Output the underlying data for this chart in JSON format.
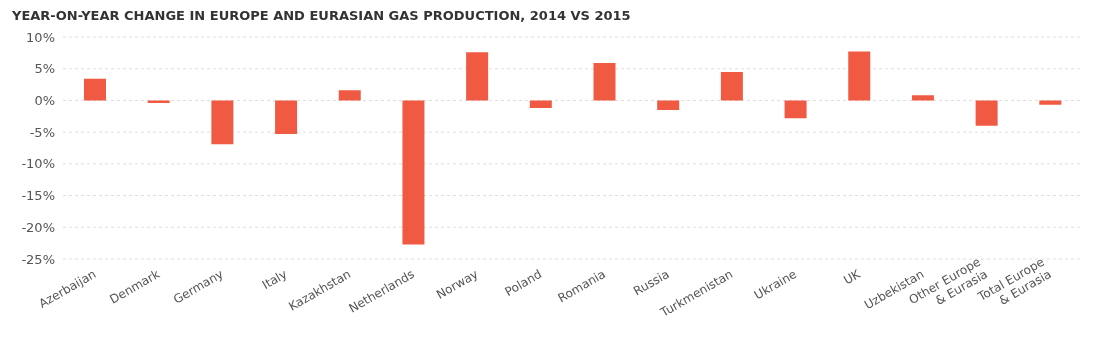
{
  "chart_data": {
    "type": "bar",
    "title": "YEAR-ON-YEAR CHANGE IN EUROPE AND EURASIAN GAS PRODUCTION, 2014 VS 2015",
    "categories": [
      "Azerbaijan",
      "Denmark",
      "Germany",
      "Italy",
      "Kazakhstan",
      "Netherlands",
      "Norway",
      "Poland",
      "Romania",
      "Russia",
      "Turkmenistan",
      "Ukraine",
      "UK",
      "Uzbekistan",
      "Other Europe & Eurasia",
      "Total Europe & Eurasia"
    ],
    "values": [
      3.4,
      -0.4,
      -6.9,
      -5.3,
      1.6,
      -22.7,
      7.6,
      -1.2,
      5.9,
      -1.5,
      4.5,
      -2.8,
      7.7,
      0.8,
      -4.0,
      -0.7
    ],
    "color": "#f15a42",
    "ylim": [
      -25,
      10
    ],
    "yticks": [
      {
        "value": -25,
        "label": "-25%"
      },
      {
        "value": -20,
        "label": "-20%"
      },
      {
        "value": -15,
        "label": "-15%"
      },
      {
        "value": -10,
        "label": "-10%"
      },
      {
        "value": -5,
        "label": "-5%"
      },
      {
        "value": 0,
        "label": "0%"
      },
      {
        "value": 5,
        "label": "5%"
      },
      {
        "value": 10,
        "label": "10%"
      }
    ],
    "grid": "y"
  }
}
